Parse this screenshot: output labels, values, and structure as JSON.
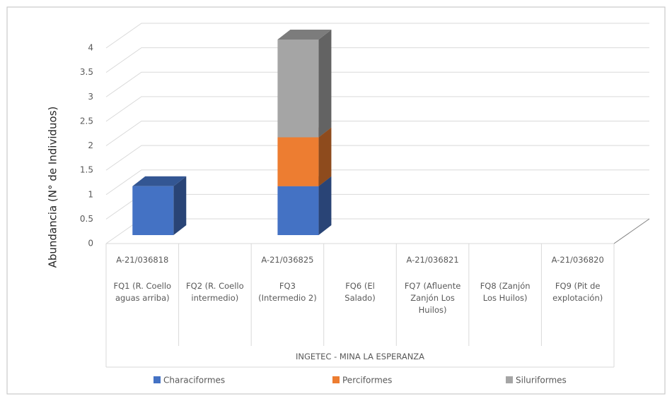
{
  "chart_data": {
    "type": "bar3d_stacked",
    "y_axis_label": "Abundancia (N° de Individuos)",
    "group_label": "INGETEC - MINA LA ESPERANZA",
    "codes": [
      "A-21/036818",
      null,
      "A-21/036825",
      null,
      "A-21/036821",
      null,
      "A-21/036820"
    ],
    "categories": [
      "FQ1 (R. Coello aguas arriba)",
      "FQ2 (R. Coello intermedio)",
      "FQ3 (Intermedio 2)",
      "FQ6 (El Salado)",
      "FQ7 (Afluente Zanjón Los Huilos)",
      "FQ8 (Zanjón Los Huilos)",
      "FQ9 (Pit de explotación)"
    ],
    "series": [
      {
        "name": "Characiformes",
        "color": "#4472c4",
        "values": [
          1,
          0,
          1,
          0,
          0,
          0,
          0
        ]
      },
      {
        "name": "Perciformes",
        "color": "#ed7d31",
        "values": [
          0,
          0,
          1,
          0,
          0,
          0,
          0
        ]
      },
      {
        "name": "Siluriformes",
        "color": "#a5a5a5",
        "values": [
          0,
          0,
          2,
          0,
          0,
          0,
          0
        ]
      }
    ],
    "ylim": [
      0,
      4
    ],
    "yticks": [
      0,
      0.5,
      1,
      1.5,
      2,
      2.5,
      3,
      3.5,
      4
    ],
    "grid": true,
    "legend": "bottom"
  }
}
